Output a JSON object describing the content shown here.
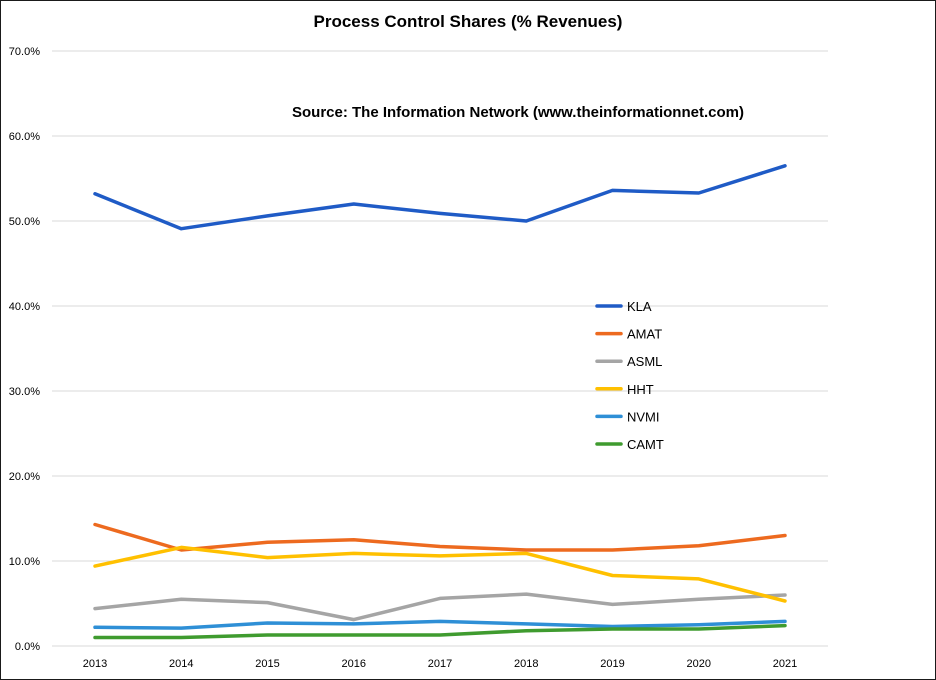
{
  "chart_data": {
    "type": "line",
    "title": "Process Control Shares (% Revenues)",
    "annotation": "Source: The Information Network (www.theinformationnet.com)",
    "xlabel": "",
    "ylabel": "",
    "categories": [
      "2013",
      "2014",
      "2015",
      "2016",
      "2017",
      "2018",
      "2019",
      "2020",
      "2021"
    ],
    "ylim": [
      0,
      70
    ],
    "yticks": [
      "0.0%",
      "10.0%",
      "20.0%",
      "30.0%",
      "40.0%",
      "50.0%",
      "60.0%",
      "70.0%"
    ],
    "grid": true,
    "legend_position": "center-right",
    "series": [
      {
        "name": "KLA",
        "color": "#1f5bc6",
        "values": [
          53.2,
          49.1,
          50.6,
          52.0,
          50.9,
          50.0,
          53.6,
          53.3,
          56.5
        ]
      },
      {
        "name": "AMAT",
        "color": "#ed6a1f",
        "values": [
          14.3,
          11.3,
          12.2,
          12.5,
          11.7,
          11.3,
          11.3,
          11.8,
          13.0
        ]
      },
      {
        "name": "ASML",
        "color": "#a5a5a5",
        "values": [
          4.4,
          5.5,
          5.1,
          3.1,
          5.6,
          6.1,
          4.9,
          5.5,
          6.0
        ]
      },
      {
        "name": "HHT",
        "color": "#ffc000",
        "values": [
          9.4,
          11.6,
          10.4,
          10.9,
          10.6,
          10.9,
          8.3,
          7.9,
          5.3
        ]
      },
      {
        "name": "NVMI",
        "color": "#2e8fd6",
        "values": [
          2.2,
          2.1,
          2.7,
          2.6,
          2.9,
          2.6,
          2.3,
          2.5,
          2.9
        ]
      },
      {
        "name": "CAMT",
        "color": "#3f9b2f",
        "values": [
          1.0,
          1.0,
          1.3,
          1.3,
          1.3,
          1.8,
          2.0,
          2.0,
          2.4
        ]
      }
    ]
  }
}
